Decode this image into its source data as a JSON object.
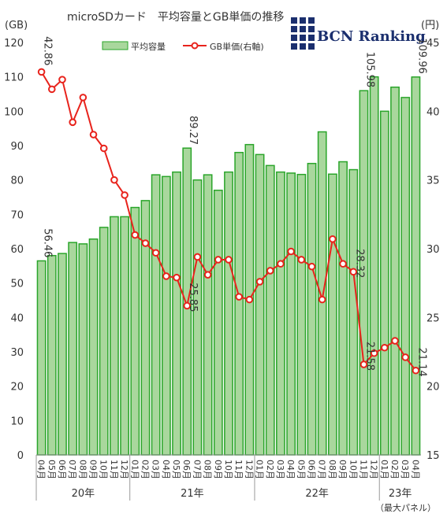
{
  "chart_data": {
    "type": "bar+line",
    "title": "microSDカード　平均容量とGB単価の推移",
    "logo_text": "BCN Ranking",
    "left_axis_unit": "(GB)",
    "right_axis_unit": "(円)",
    "left_ylim": [
      0,
      120
    ],
    "left_ticks": [
      0,
      10,
      20,
      30,
      40,
      50,
      60,
      70,
      80,
      90,
      100,
      110,
      120
    ],
    "right_ylim": [
      15,
      45
    ],
    "right_ticks": [
      15,
      20,
      25,
      30,
      35,
      40,
      45
    ],
    "legend_position": "top",
    "grid": false,
    "footnote": "（最大パネル）",
    "categories": [
      "04月",
      "05月",
      "06月",
      "07月",
      "08月",
      "09月",
      "10月",
      "11月",
      "12月",
      "01月",
      "02月",
      "03月",
      "04月",
      "05月",
      "06月",
      "07月",
      "08月",
      "09月",
      "10月",
      "11月",
      "12月",
      "01月",
      "02月",
      "03月",
      "04月",
      "05月",
      "06月",
      "07月",
      "08月",
      "09月",
      "10月",
      "11月",
      "12月",
      "01月",
      "02月",
      "03月",
      "04月"
    ],
    "years": [
      {
        "label": "20年",
        "start": 0,
        "end": 8
      },
      {
        "label": "21年",
        "start": 9,
        "end": 20
      },
      {
        "label": "22年",
        "start": 21,
        "end": 32
      },
      {
        "label": "23年",
        "start": 33,
        "end": 36
      }
    ],
    "series": [
      {
        "name": "平均容量",
        "axis": "left",
        "type": "bar",
        "color": "#a9d79d",
        "border": "#2aa52a",
        "values": [
          56.46,
          58.0,
          58.6,
          61.8,
          61.4,
          62.8,
          66.2,
          69.3,
          69.3,
          72.0,
          74.0,
          81.5,
          81.0,
          82.3,
          89.27,
          80.0,
          81.5,
          77.0,
          82.3,
          88.0,
          90.3,
          87.4,
          84.2,
          82.3,
          82.0,
          81.6,
          84.8,
          94.0,
          81.7,
          85.3,
          83.0,
          105.98,
          110.0,
          100.0,
          107.0,
          104.0,
          109.96
        ]
      },
      {
        "name": "GB単価(右軸)",
        "axis": "right",
        "type": "line",
        "color": "#e8231c",
        "values": [
          42.86,
          41.6,
          42.3,
          39.2,
          41.0,
          38.3,
          37.3,
          35.0,
          33.9,
          31.0,
          30.4,
          29.7,
          28.0,
          27.9,
          25.85,
          29.4,
          28.1,
          29.2,
          29.2,
          26.5,
          26.3,
          27.6,
          28.4,
          28.9,
          29.8,
          29.2,
          28.7,
          26.3,
          30.7,
          28.9,
          28.32,
          21.58,
          22.4,
          22.8,
          23.3,
          22.1,
          21.14
        ]
      }
    ],
    "data_labels": [
      {
        "series": 0,
        "index": 0,
        "text": "56.46"
      },
      {
        "series": 0,
        "index": 14,
        "text": "89.27"
      },
      {
        "series": 0,
        "index": 31,
        "text": "105.98"
      },
      {
        "series": 0,
        "index": 36,
        "text": "109.96"
      },
      {
        "series": 1,
        "index": 0,
        "text": "42.86"
      },
      {
        "series": 1,
        "index": 14,
        "text": "25.85"
      },
      {
        "series": 1,
        "index": 30,
        "text": "28.32"
      },
      {
        "series": 1,
        "index": 31,
        "text": "21.58"
      },
      {
        "series": 1,
        "index": 36,
        "text": "21.14"
      }
    ]
  }
}
